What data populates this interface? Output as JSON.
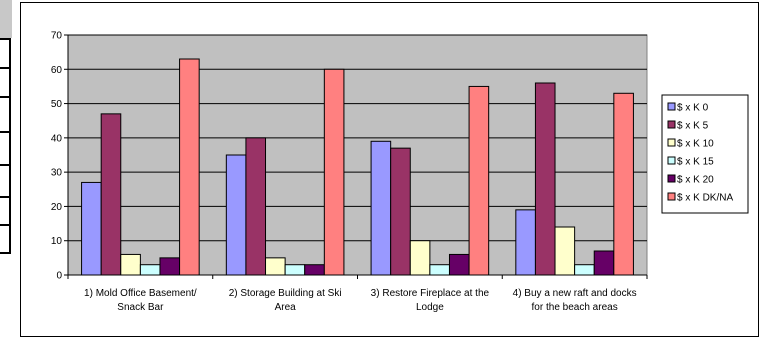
{
  "chart_data": {
    "type": "bar",
    "categories": [
      [
        "1) Mold Office Basement/",
        "Snack Bar"
      ],
      [
        "2) Storage Building at Ski",
        "Area"
      ],
      [
        "3) Restore Fireplace at the",
        "Lodge"
      ],
      [
        "4) Buy a new raft and docks",
        "for the beach areas"
      ]
    ],
    "series": [
      {
        "name": "$ x K 0",
        "color": "#9999ff",
        "values": [
          27,
          35,
          39,
          19
        ]
      },
      {
        "name": "$ x K 5",
        "color": "#993366",
        "values": [
          47,
          40,
          37,
          56
        ]
      },
      {
        "name": "$ x K 10",
        "color": "#ffffcc",
        "values": [
          6,
          5,
          10,
          14
        ]
      },
      {
        "name": "$ x K 15",
        "color": "#ccffff",
        "values": [
          3,
          3,
          3,
          3
        ]
      },
      {
        "name": "$ x K 20",
        "color": "#660066",
        "values": [
          5,
          3,
          6,
          7
        ]
      },
      {
        "name": "$ x K DK/NA",
        "color": "#ff8080",
        "values": [
          63,
          60,
          55,
          53
        ]
      }
    ],
    "ylim": [
      0,
      70
    ],
    "yticks": [
      0,
      10,
      20,
      30,
      40,
      50,
      60,
      70
    ],
    "plot_background": "#c0c0c0",
    "grid": true,
    "legend_position": "right"
  }
}
